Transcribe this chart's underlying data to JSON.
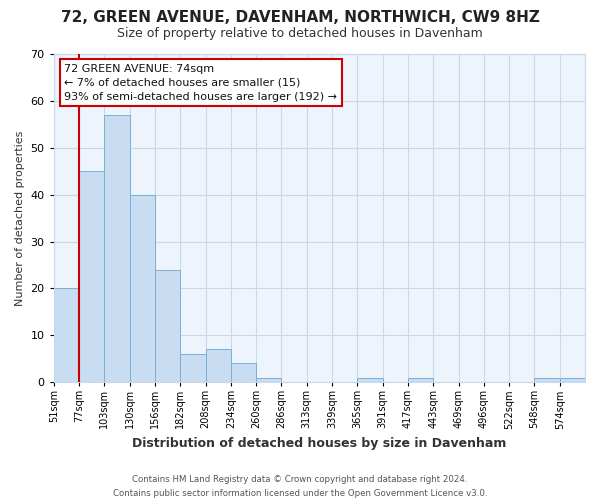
{
  "title": "72, GREEN AVENUE, DAVENHAM, NORTHWICH, CW9 8HZ",
  "subtitle": "Size of property relative to detached houses in Davenham",
  "xlabel": "Distribution of detached houses by size in Davenham",
  "ylabel": "Number of detached properties",
  "bar_color": "#c8ddf2",
  "bar_edge_color": "#7aafd4",
  "highlight_line_color": "#cc0000",
  "categories": [
    "51sqm",
    "77sqm",
    "103sqm",
    "130sqm",
    "156sqm",
    "182sqm",
    "208sqm",
    "234sqm",
    "260sqm",
    "286sqm",
    "313sqm",
    "339sqm",
    "365sqm",
    "391sqm",
    "417sqm",
    "443sqm",
    "469sqm",
    "496sqm",
    "522sqm",
    "548sqm",
    "574sqm"
  ],
  "values": [
    20,
    45,
    57,
    40,
    24,
    6,
    7,
    4,
    1,
    0,
    0,
    0,
    1,
    0,
    1,
    0,
    0,
    0,
    0,
    1,
    1
  ],
  "ylim": [
    0,
    70
  ],
  "yticks": [
    0,
    10,
    20,
    30,
    40,
    50,
    60,
    70
  ],
  "annotation_title": "72 GREEN AVENUE: 74sqm",
  "annotation_line1": "← 7% of detached houses are smaller (15)",
  "annotation_line2": "93% of semi-detached houses are larger (192) →",
  "annotation_box_color": "#ffffff",
  "annotation_box_edge_color": "#cc0000",
  "footer_line1": "Contains HM Land Registry data © Crown copyright and database right 2024.",
  "footer_line2": "Contains public sector information licensed under the Open Government Licence v3.0.",
  "background_color": "#ffffff",
  "plot_bg_color": "#eef4fb",
  "grid_color": "#c8d8ea",
  "spine_color": "#c8d8ea"
}
